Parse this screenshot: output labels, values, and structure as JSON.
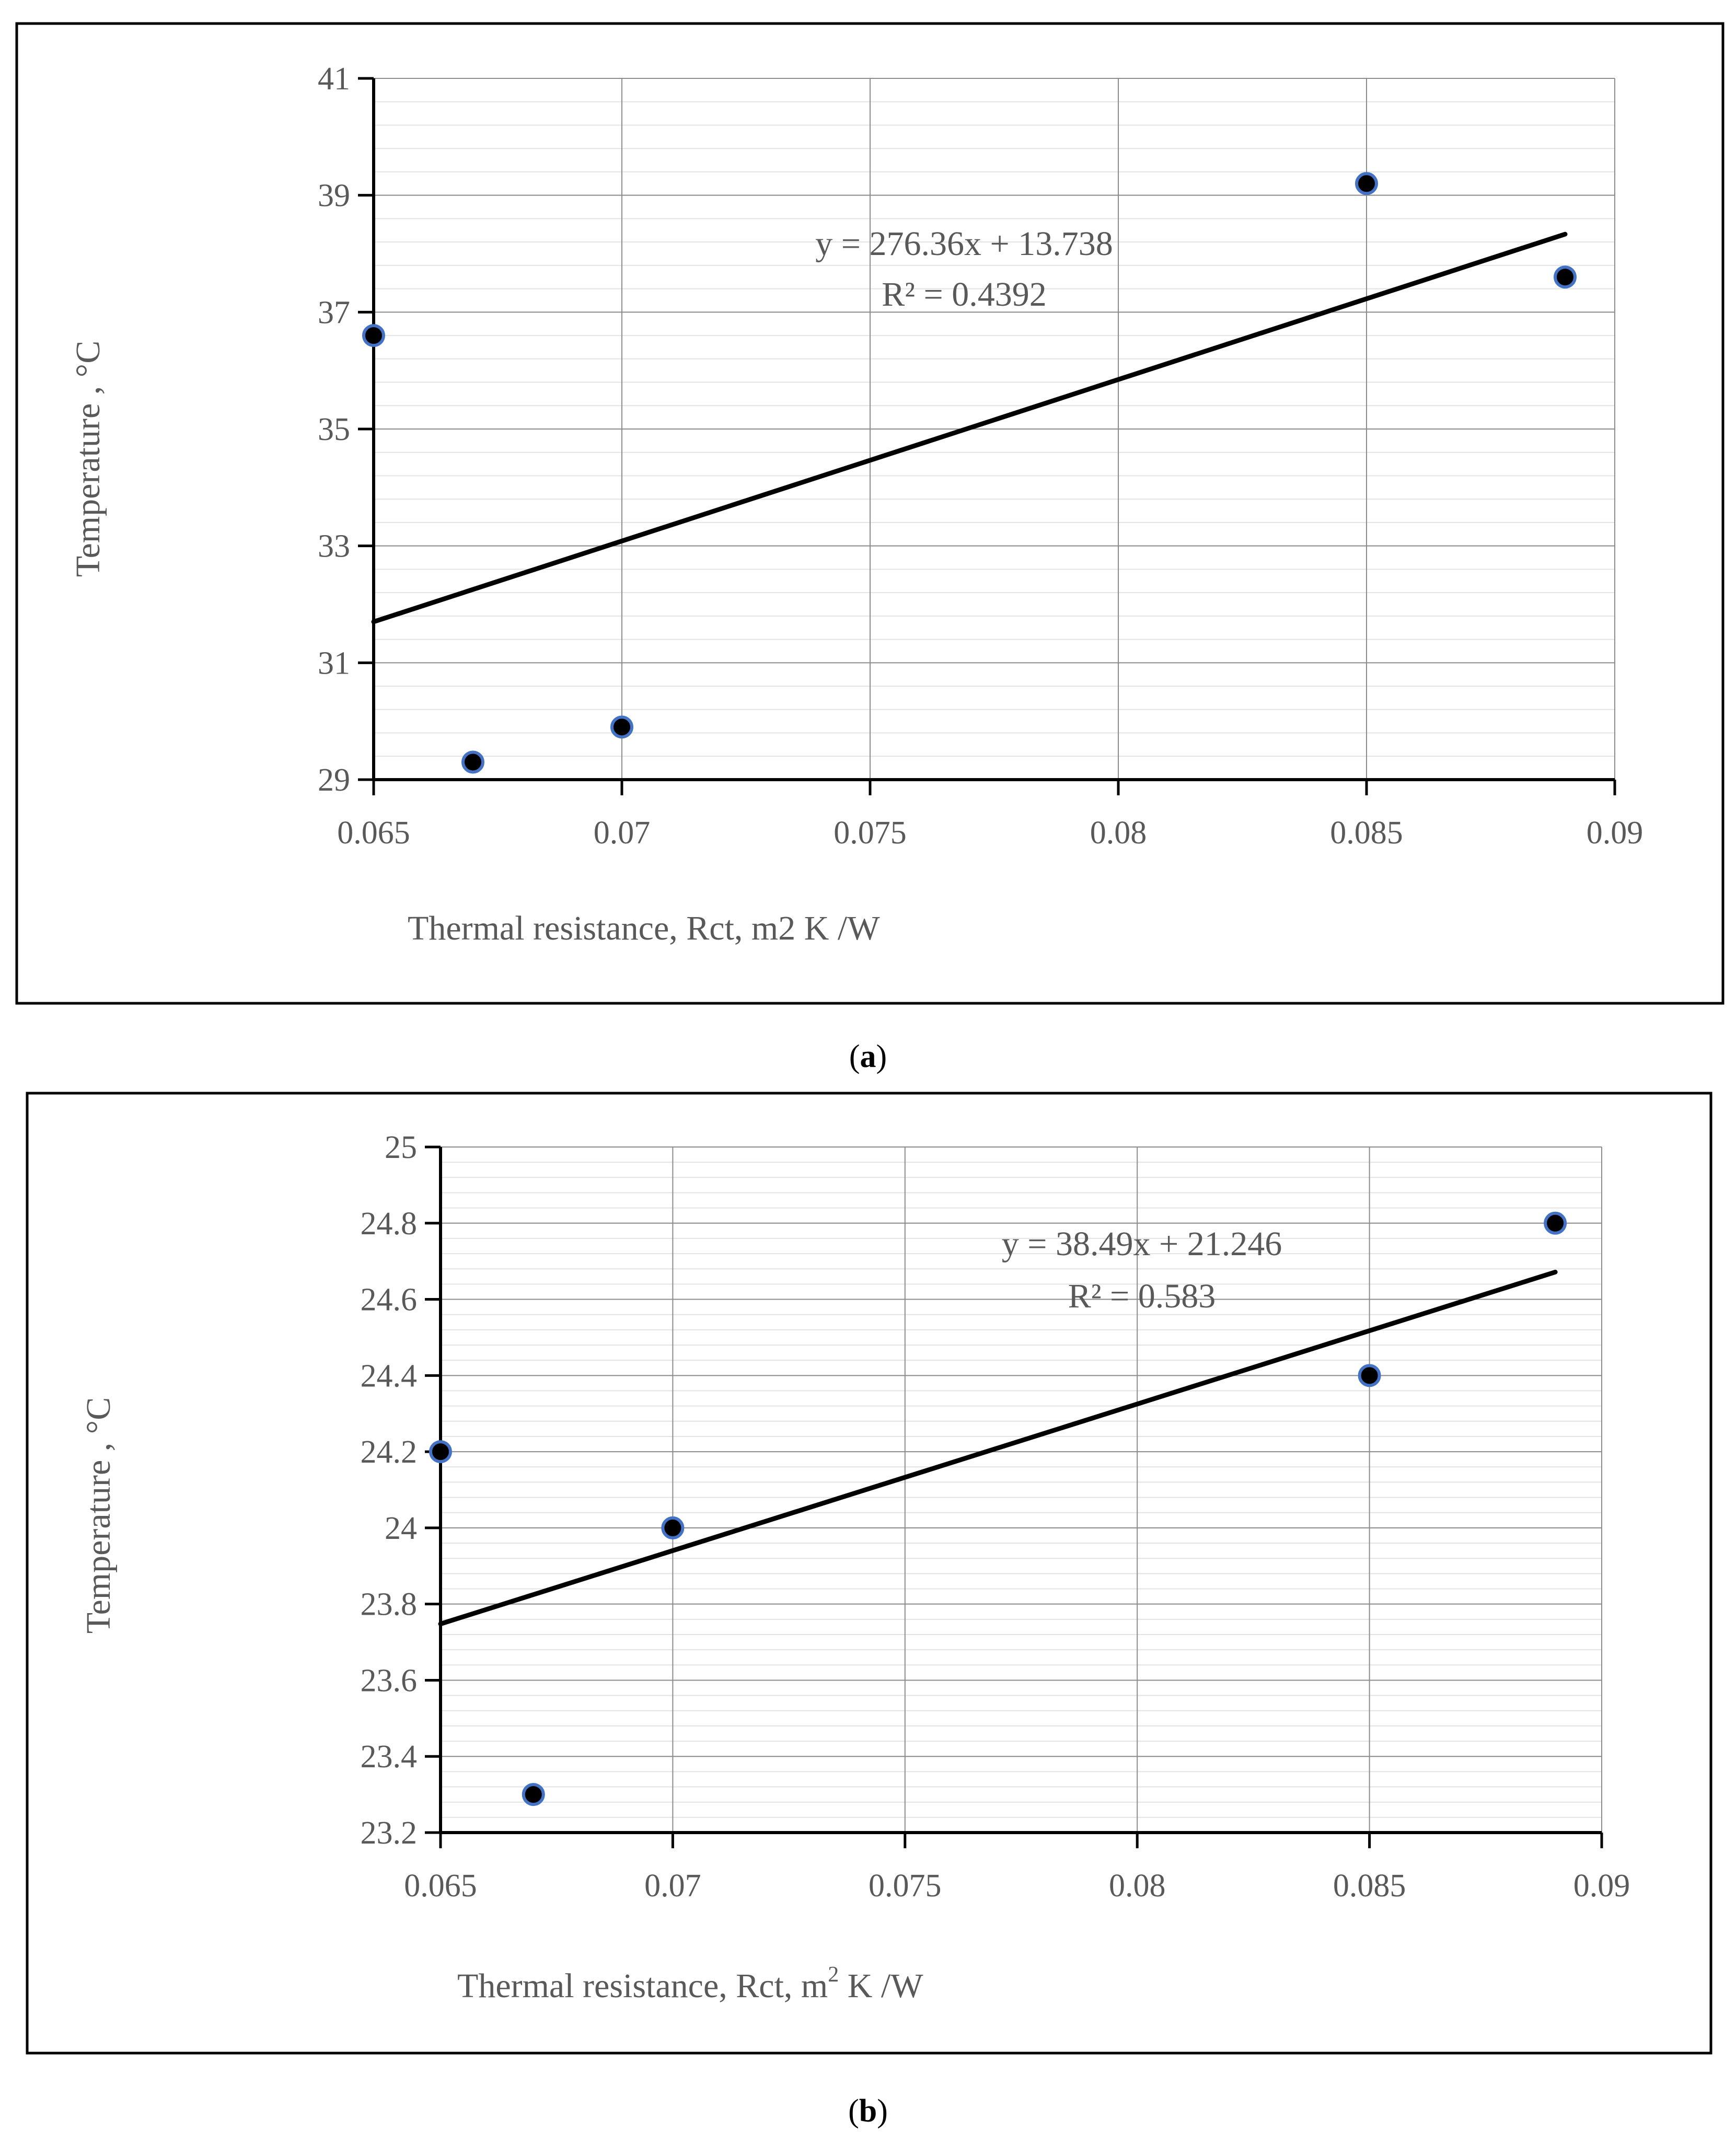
{
  "chart_data": [
    {
      "type": "scatter",
      "panel": "a",
      "panel_label": "a",
      "title": "",
      "xlabel": "Thermal resistance, Rct, m2 K /W",
      "ylabel": "Temperature , °C",
      "xlim": [
        0.065,
        0.09
      ],
      "ylim": [
        29,
        41
      ],
      "x_ticks": [
        0.065,
        0.07,
        0.075,
        0.08,
        0.085,
        0.09
      ],
      "x_tick_labels": [
        "0.065",
        "0.07",
        "0.075",
        "0.08",
        "0.085",
        "0.09"
      ],
      "y_ticks": [
        29,
        31,
        33,
        35,
        37,
        39,
        41
      ],
      "y_tick_labels": [
        "29",
        "31",
        "33",
        "35",
        "37",
        "39",
        "41"
      ],
      "y_minor_step": 0.4,
      "grid": true,
      "series": [
        {
          "name": "data",
          "x": [
            0.065,
            0.067,
            0.07,
            0.085,
            0.089
          ],
          "y": [
            36.6,
            29.3,
            29.9,
            39.2,
            37.6
          ],
          "marker_color": "#000000",
          "marker_edge_color": "#4472c4"
        }
      ],
      "trendline": {
        "slope": 276.36,
        "intercept": 13.738,
        "x_range": [
          0.065,
          0.089
        ],
        "color": "#000000",
        "equation_text": "y = 276.36x + 13.738",
        "r2_text": "R² = 0.4392"
      }
    },
    {
      "type": "scatter",
      "panel": "b",
      "panel_label": "b",
      "title": "",
      "xlabel_main": "Thermal resistance, Rct, m",
      "xlabel_sup": "2",
      "xlabel_tail": " K /W",
      "ylabel": "Temperature , °C",
      "xlim": [
        0.065,
        0.09
      ],
      "ylim": [
        23.2,
        25
      ],
      "x_ticks": [
        0.065,
        0.07,
        0.075,
        0.08,
        0.085,
        0.09
      ],
      "x_tick_labels": [
        "0.065",
        "0.07",
        "0.075",
        "0.08",
        "0.085",
        "0.09"
      ],
      "y_ticks": [
        23.2,
        23.4,
        23.6,
        23.8,
        24,
        24.2,
        24.4,
        24.6,
        24.8,
        25
      ],
      "y_tick_labels": [
        "23.2",
        "23.4",
        "23.6",
        "23.8",
        "24",
        "24.2",
        "24.4",
        "24.6",
        "24.8",
        "25"
      ],
      "y_minor_step": 0.04,
      "grid": true,
      "series": [
        {
          "name": "data",
          "x": [
            0.065,
            0.067,
            0.07,
            0.085,
            0.089
          ],
          "y": [
            24.2,
            23.3,
            24.0,
            24.4,
            24.8
          ],
          "marker_color": "#000000",
          "marker_edge_color": "#4472c4"
        }
      ],
      "trendline": {
        "slope": 38.49,
        "intercept": 21.246,
        "x_range": [
          0.065,
          0.089
        ],
        "color": "#000000",
        "equation_text": "y = 38.49x + 21.246",
        "r2_text": "R² = 0.583"
      }
    }
  ]
}
